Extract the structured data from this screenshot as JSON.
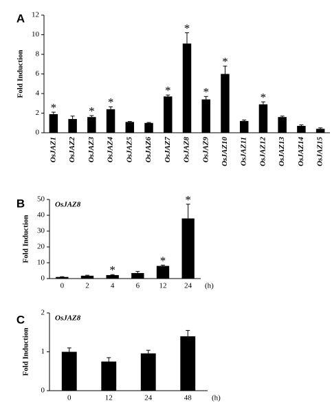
{
  "chart_data": [
    {
      "type": "bar",
      "panel": "A",
      "ylabel": "Fold Induction",
      "color": "#000000",
      "marker": "*",
      "categories": [
        "OsJAZ1",
        "OsJAZ2",
        "OsJAZ3",
        "OsJAZ4",
        "OsJAZ5",
        "OsJAZ6",
        "OsJAZ7",
        "OsJAZ8",
        "OsJAZ9",
        "OsJAZ10",
        "OsJAZ11",
        "OsJAZ12",
        "OsJAZ13",
        "OsJAZ14",
        "OsJAZ15"
      ],
      "values": [
        1.9,
        1.4,
        1.6,
        2.4,
        1.1,
        1.0,
        3.7,
        9.1,
        3.4,
        6.0,
        1.2,
        2.9,
        1.6,
        0.7,
        0.4
      ],
      "errors": [
        0.2,
        0.3,
        0.15,
        0.25,
        0.05,
        0.05,
        0.15,
        1.1,
        0.3,
        0.8,
        0.1,
        0.25,
        0.1,
        0.1,
        0.1
      ],
      "significant": [
        true,
        false,
        true,
        true,
        false,
        false,
        true,
        true,
        true,
        true,
        false,
        true,
        false,
        false,
        false
      ],
      "ylim": [
        0,
        12
      ],
      "yticks": [
        0,
        2,
        4,
        6,
        8,
        10,
        12
      ]
    },
    {
      "type": "bar",
      "panel": "B",
      "ylabel": "Fold Induction",
      "gene": "OsJAZ8",
      "xunit": "(h)",
      "color": "#000000",
      "marker": "*",
      "categories": [
        "0",
        "2",
        "4",
        "6",
        "12",
        "24"
      ],
      "values": [
        1,
        1.8,
        2.2,
        3.5,
        8,
        38
      ],
      "errors": [
        0.2,
        0.3,
        0.3,
        1,
        0.5,
        9
      ],
      "significant": [
        false,
        false,
        true,
        false,
        true,
        true
      ],
      "ylim": [
        0,
        50
      ],
      "yticks": [
        0,
        10,
        20,
        30,
        40,
        50
      ]
    },
    {
      "type": "bar",
      "panel": "C",
      "ylabel": "Fold Induction",
      "gene": "OsJAZ8",
      "xunit": "(h)",
      "color": "#000000",
      "categories": [
        "0",
        "12",
        "24",
        "48"
      ],
      "values": [
        1.0,
        0.75,
        0.96,
        1.4
      ],
      "errors": [
        0.1,
        0.1,
        0.08,
        0.15
      ],
      "significant": [
        false,
        false,
        false,
        false
      ],
      "ylim": [
        0,
        2
      ],
      "yticks": [
        0,
        1,
        2
      ]
    }
  ]
}
